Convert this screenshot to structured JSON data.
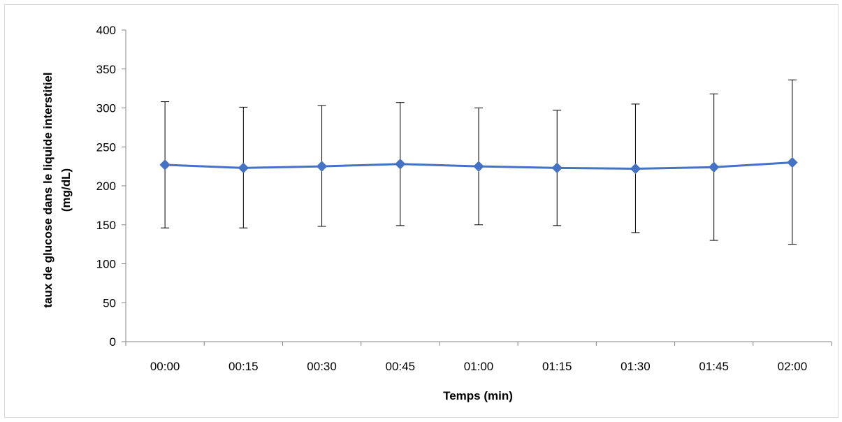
{
  "chart_data": {
    "type": "line",
    "title": "",
    "xlabel": "Temps (min)",
    "ylabel_lines": [
      "taux de glucose dans le liquide interstitiel",
      "(mg/dL)"
    ],
    "categories": [
      "00:00",
      "00:15",
      "00:30",
      "00:45",
      "01:00",
      "01:15",
      "01:30",
      "01:45",
      "02:00"
    ],
    "y_ticks": [
      "0",
      "50",
      "100",
      "150",
      "200",
      "250",
      "300",
      "350",
      "400"
    ],
    "ylim": [
      0,
      400
    ],
    "grid": false,
    "legend": "none",
    "series": [
      {
        "values": [
          227,
          223,
          225,
          228,
          225,
          223,
          222,
          224,
          230
        ],
        "error_low": [
          146,
          146,
          148,
          149,
          150,
          149,
          140,
          130,
          125
        ],
        "error_high": [
          308,
          301,
          303,
          307,
          300,
          297,
          305,
          318,
          336
        ],
        "color": "#4472c4",
        "marker": "diamond"
      }
    ],
    "error_bar_color": "#000000",
    "axis_color": "#868686"
  }
}
